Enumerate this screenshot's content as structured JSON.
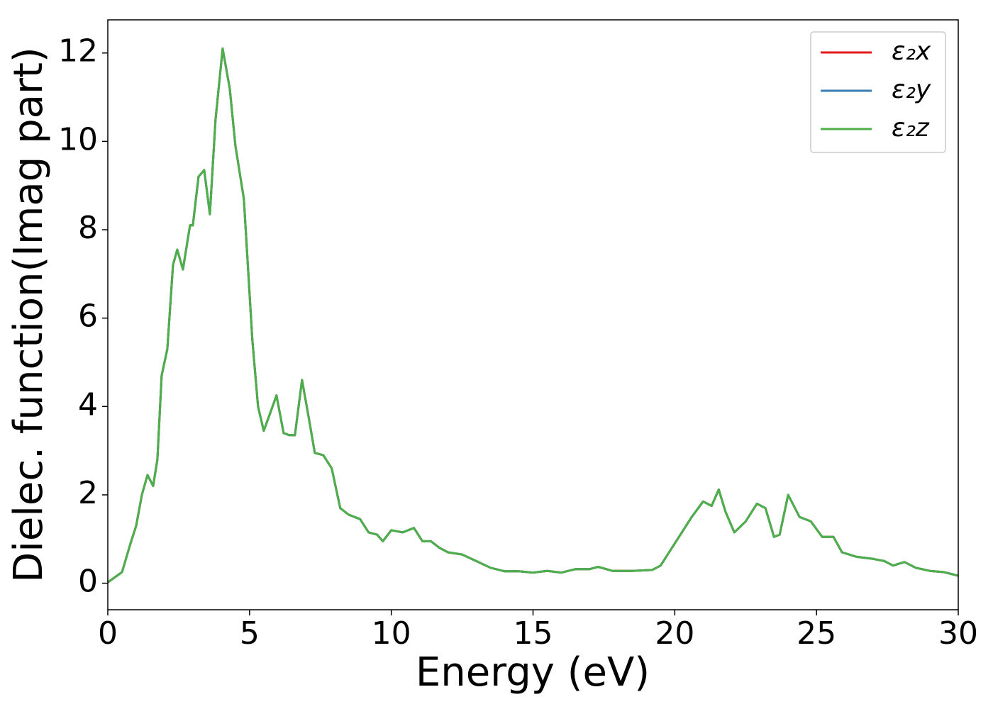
{
  "chart_data": {
    "type": "line",
    "xlabel": "Energy (eV)",
    "ylabel": "Dielec. function(Imag part)",
    "xlim": [
      0,
      30
    ],
    "xticks": [
      0,
      5,
      10,
      15,
      20,
      25,
      30
    ],
    "ylim": [
      -0.6,
      12.75
    ],
    "yticks": [
      0,
      2,
      4,
      6,
      8,
      10,
      12
    ],
    "legend": "upper right",
    "x": [
      0,
      0.5,
      0.8,
      1.0,
      1.2,
      1.4,
      1.6,
      1.75,
      1.9,
      2.1,
      2.3,
      2.45,
      2.65,
      2.9,
      3.0,
      3.2,
      3.4,
      3.6,
      3.8,
      4.05,
      4.3,
      4.5,
      4.8,
      5.1,
      5.3,
      5.5,
      5.7,
      5.95,
      6.2,
      6.4,
      6.6,
      6.85,
      7.1,
      7.3,
      7.6,
      7.9,
      8.2,
      8.5,
      8.9,
      9.2,
      9.5,
      9.7,
      10.0,
      10.4,
      10.8,
      11.1,
      11.4,
      11.7,
      12.0,
      12.5,
      13.0,
      13.5,
      14.0,
      14.5,
      15.0,
      15.5,
      16.0,
      16.5,
      17.0,
      17.3,
      17.8,
      18.5,
      19.2,
      19.5,
      19.8,
      20.2,
      20.6,
      21.0,
      21.3,
      21.55,
      21.8,
      22.1,
      22.5,
      22.9,
      23.2,
      23.5,
      23.7,
      24.0,
      24.4,
      24.8,
      25.2,
      25.6,
      25.9,
      26.4,
      27.0,
      27.4,
      27.7,
      28.1,
      28.5,
      29.0,
      29.5,
      30.0
    ],
    "series": [
      {
        "name": "ε₂x",
        "color": "#e41a1c",
        "values": [
          0.02,
          0.25,
          0.9,
          1.3,
          2.0,
          2.45,
          2.2,
          2.8,
          4.7,
          5.3,
          7.2,
          7.55,
          7.1,
          8.1,
          8.1,
          9.2,
          9.35,
          8.35,
          10.5,
          12.1,
          11.2,
          9.9,
          8.7,
          5.5,
          4.0,
          3.45,
          3.8,
          4.25,
          3.4,
          3.35,
          3.35,
          4.6,
          3.7,
          2.95,
          2.9,
          2.6,
          1.7,
          1.55,
          1.45,
          1.15,
          1.1,
          0.95,
          1.2,
          1.15,
          1.25,
          0.95,
          0.95,
          0.8,
          0.7,
          0.65,
          0.5,
          0.35,
          0.27,
          0.27,
          0.24,
          0.28,
          0.24,
          0.32,
          0.32,
          0.37,
          0.28,
          0.28,
          0.3,
          0.4,
          0.7,
          1.1,
          1.5,
          1.85,
          1.75,
          2.12,
          1.6,
          1.15,
          1.4,
          1.8,
          1.7,
          1.05,
          1.1,
          2.0,
          1.5,
          1.4,
          1.05,
          1.05,
          0.7,
          0.6,
          0.55,
          0.5,
          0.4,
          0.48,
          0.35,
          0.28,
          0.25,
          0.17
        ]
      },
      {
        "name": "ε₂y",
        "color": "#377eb8",
        "values": [
          0.02,
          0.25,
          0.9,
          1.3,
          2.0,
          2.45,
          2.2,
          2.8,
          4.7,
          5.3,
          7.2,
          7.55,
          7.1,
          8.1,
          8.1,
          9.2,
          9.35,
          8.35,
          10.5,
          12.1,
          11.2,
          9.9,
          8.7,
          5.5,
          4.0,
          3.45,
          3.8,
          4.25,
          3.4,
          3.35,
          3.35,
          4.6,
          3.7,
          2.95,
          2.9,
          2.6,
          1.7,
          1.55,
          1.45,
          1.15,
          1.1,
          0.95,
          1.2,
          1.15,
          1.25,
          0.95,
          0.95,
          0.8,
          0.7,
          0.65,
          0.5,
          0.35,
          0.27,
          0.27,
          0.24,
          0.28,
          0.24,
          0.32,
          0.32,
          0.37,
          0.28,
          0.28,
          0.3,
          0.4,
          0.7,
          1.1,
          1.5,
          1.85,
          1.75,
          2.12,
          1.6,
          1.15,
          1.4,
          1.8,
          1.7,
          1.05,
          1.1,
          2.0,
          1.5,
          1.4,
          1.05,
          1.05,
          0.7,
          0.6,
          0.55,
          0.5,
          0.4,
          0.48,
          0.35,
          0.28,
          0.25,
          0.17
        ]
      },
      {
        "name": "ε₂z",
        "color": "#4daf4a",
        "values": [
          0.02,
          0.25,
          0.9,
          1.3,
          2.0,
          2.45,
          2.2,
          2.8,
          4.7,
          5.3,
          7.2,
          7.55,
          7.1,
          8.1,
          8.1,
          9.2,
          9.35,
          8.35,
          10.5,
          12.1,
          11.2,
          9.9,
          8.7,
          5.5,
          4.0,
          3.45,
          3.8,
          4.25,
          3.4,
          3.35,
          3.35,
          4.6,
          3.7,
          2.95,
          2.9,
          2.6,
          1.7,
          1.55,
          1.45,
          1.15,
          1.1,
          0.95,
          1.2,
          1.15,
          1.25,
          0.95,
          0.95,
          0.8,
          0.7,
          0.65,
          0.5,
          0.35,
          0.27,
          0.27,
          0.24,
          0.28,
          0.24,
          0.32,
          0.32,
          0.37,
          0.28,
          0.28,
          0.3,
          0.4,
          0.7,
          1.1,
          1.5,
          1.85,
          1.75,
          2.12,
          1.6,
          1.15,
          1.4,
          1.8,
          1.7,
          1.05,
          1.1,
          2.0,
          1.5,
          1.4,
          1.05,
          1.05,
          0.7,
          0.6,
          0.55,
          0.5,
          0.4,
          0.48,
          0.35,
          0.28,
          0.25,
          0.17
        ]
      }
    ]
  }
}
